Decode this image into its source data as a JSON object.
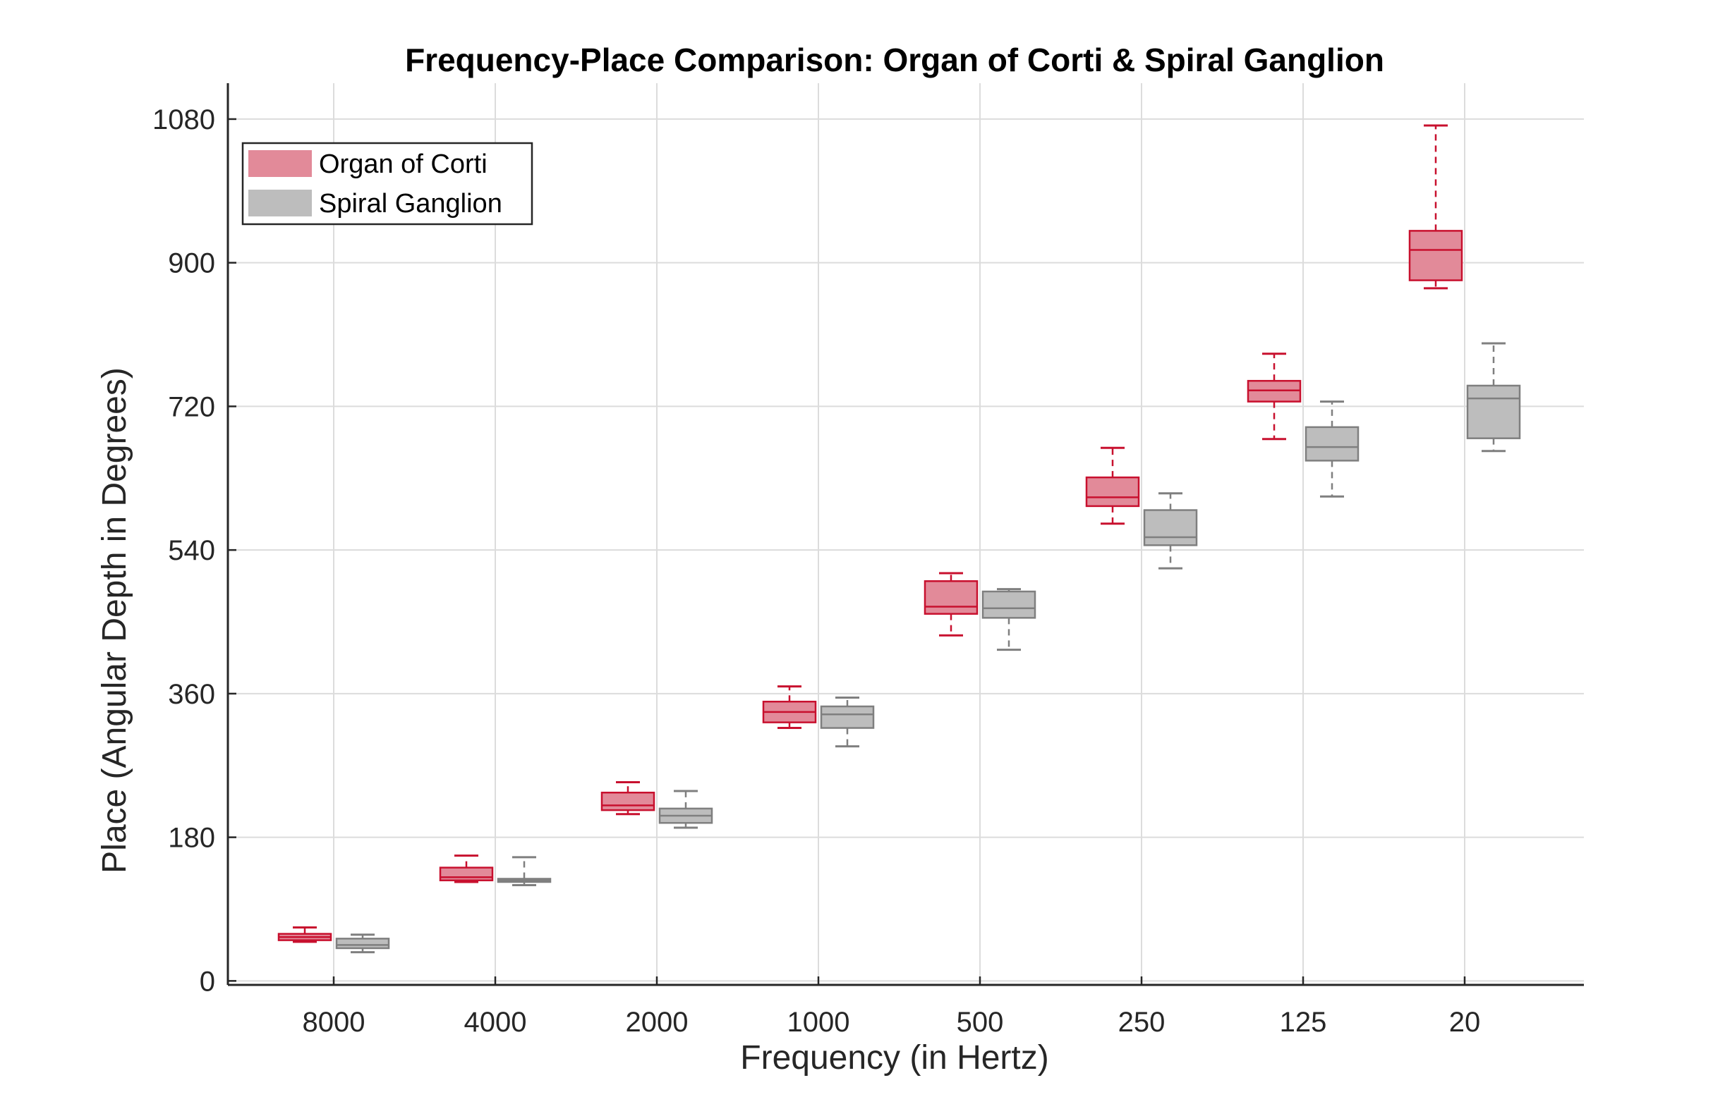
{
  "chart_data": {
    "type": "box",
    "title": "Frequency-Place Comparison: Organ of Corti & Spiral Ganglion",
    "xlabel": "Frequency (in Hertz)",
    "ylabel": "Place (Angular Depth in Degrees)",
    "categories": [
      "8000",
      "4000",
      "2000",
      "1000",
      "500",
      "250",
      "125",
      "20"
    ],
    "ylim": [
      -5,
      1125
    ],
    "yticks": [
      0,
      180,
      360,
      540,
      720,
      900,
      1080
    ],
    "grid": true,
    "legend_position": "top-left",
    "series": [
      {
        "name": "Organ of Corti",
        "color": "#C8102E",
        "fill": "#E28A99",
        "boxes": [
          {
            "min": 49,
            "q1": 51,
            "median": 55,
            "q3": 59,
            "max": 67
          },
          {
            "min": 124,
            "q1": 126,
            "median": 130,
            "q3": 142,
            "max": 157
          },
          {
            "min": 209,
            "q1": 214,
            "median": 220,
            "q3": 236,
            "max": 249
          },
          {
            "min": 317,
            "q1": 324,
            "median": 337,
            "q3": 350,
            "max": 369
          },
          {
            "min": 433,
            "q1": 460,
            "median": 469,
            "q3": 501,
            "max": 511
          },
          {
            "min": 573,
            "q1": 595,
            "median": 606,
            "q3": 631,
            "max": 668
          },
          {
            "min": 679,
            "q1": 726,
            "median": 740,
            "q3": 752,
            "max": 786
          },
          {
            "min": 868,
            "q1": 878,
            "median": 916,
            "q3": 940,
            "max": 1072
          }
        ]
      },
      {
        "name": "Spiral Ganglion",
        "color": "#7F7F7F",
        "fill": "#BDBDBD",
        "boxes": [
          {
            "min": 36,
            "q1": 41,
            "median": 45,
            "q3": 53,
            "max": 58
          },
          {
            "min": 120,
            "q1": 124,
            "median": 126,
            "q3": 128,
            "max": 155
          },
          {
            "min": 192,
            "q1": 198,
            "median": 207,
            "q3": 216,
            "max": 238
          },
          {
            "min": 294,
            "q1": 317,
            "median": 334,
            "q3": 344,
            "max": 355
          },
          {
            "min": 415,
            "q1": 455,
            "median": 467,
            "q3": 488,
            "max": 491
          },
          {
            "min": 517,
            "q1": 546,
            "median": 556,
            "q3": 590,
            "max": 611
          },
          {
            "min": 607,
            "q1": 652,
            "median": 669,
            "q3": 694,
            "max": 726
          },
          {
            "min": 664,
            "q1": 680,
            "median": 730,
            "q3": 746,
            "max": 799
          }
        ]
      }
    ]
  }
}
